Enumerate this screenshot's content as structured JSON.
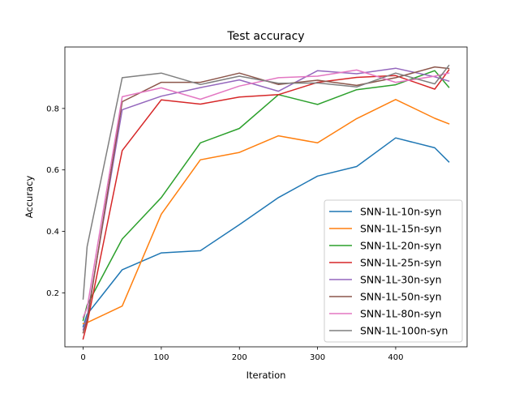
{
  "chart_data": {
    "type": "line",
    "title": "Test accuracy",
    "xlabel": "Iteration",
    "ylabel": "Accuracy",
    "xlim": [
      -23.4,
      491.4
    ],
    "ylim": [
      0.0243,
      1.0
    ],
    "xticks": [
      0,
      100,
      200,
      300,
      400
    ],
    "yticks": [
      0.2,
      0.4,
      0.6,
      0.8
    ],
    "ytick_labels": [
      "0.2",
      "0.4",
      "0.6",
      "0.8"
    ],
    "grid": false,
    "legend_position": "lower-right",
    "x": [
      0,
      5,
      50,
      100,
      150,
      200,
      250,
      300,
      350,
      400,
      450,
      468
    ],
    "series": [
      {
        "name": "SNN-1L-10n-syn",
        "color": "#1f77b4",
        "values": [
          0.09,
          0.13,
          0.275,
          0.33,
          0.337,
          0.422,
          0.51,
          0.58,
          0.611,
          0.704,
          0.672,
          0.626
        ]
      },
      {
        "name": "SNN-1L-15n-syn",
        "color": "#ff7f0e",
        "values": [
          0.1,
          0.103,
          0.157,
          0.456,
          0.633,
          0.657,
          0.711,
          0.688,
          0.767,
          0.829,
          0.768,
          0.75
        ]
      },
      {
        "name": "SNN-1L-20n-syn",
        "color": "#2ca02c",
        "values": [
          0.11,
          0.16,
          0.375,
          0.51,
          0.688,
          0.735,
          0.845,
          0.813,
          0.861,
          0.877,
          0.923,
          0.869
        ]
      },
      {
        "name": "SNN-1L-25n-syn",
        "color": "#d62728",
        "values": [
          0.05,
          0.1,
          0.663,
          0.828,
          0.814,
          0.837,
          0.845,
          0.885,
          0.901,
          0.907,
          0.863,
          0.925
        ]
      },
      {
        "name": "SNN-1L-30n-syn",
        "color": "#9467bd",
        "values": [
          0.08,
          0.12,
          0.796,
          0.84,
          0.868,
          0.893,
          0.856,
          0.923,
          0.913,
          0.931,
          0.903,
          0.889
        ]
      },
      {
        "name": "SNN-1L-50n-syn",
        "color": "#8c564b",
        "values": [
          0.07,
          0.11,
          0.822,
          0.885,
          0.885,
          0.915,
          0.878,
          0.892,
          0.875,
          0.9,
          0.935,
          0.93
        ]
      },
      {
        "name": "SNN-1L-80n-syn",
        "color": "#e377c2",
        "values": [
          0.12,
          0.15,
          0.838,
          0.867,
          0.83,
          0.873,
          0.9,
          0.905,
          0.925,
          0.885,
          0.905,
          0.915
        ]
      },
      {
        "name": "SNN-1L-100n-syn",
        "color": "#7f7f7f",
        "values": [
          0.18,
          0.35,
          0.9,
          0.915,
          0.878,
          0.905,
          0.882,
          0.883,
          0.87,
          0.915,
          0.88,
          0.94
        ]
      }
    ]
  }
}
